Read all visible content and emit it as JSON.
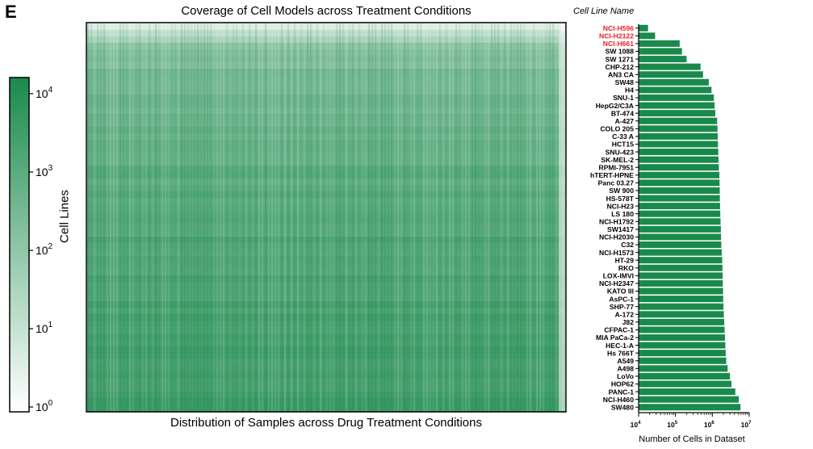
{
  "panel_letter": "E",
  "heatmap": {
    "title": "Coverage of Cell Models across Treatment Conditions",
    "xlabel": "Distribution of Samples across Drug Treatment Conditions",
    "ylabel": "Cell Lines",
    "colorbar_ticks": [
      {
        "base": "10",
        "exp": "4"
      },
      {
        "base": "10",
        "exp": "3"
      },
      {
        "base": "10",
        "exp": "2"
      },
      {
        "base": "10",
        "exp": "1"
      },
      {
        "base": "10",
        "exp": "0"
      }
    ],
    "color_low": "#ffffff",
    "color_high": "#1a8a4c"
  },
  "chart_data": {
    "type": "bar",
    "orientation": "horizontal",
    "title": "Cell Line Name",
    "xlabel": "Number of Cells in Dataset",
    "xscale": "log",
    "xlim": [
      10000,
      10000000
    ],
    "xticks": [
      {
        "base": "10",
        "exp": "4"
      },
      {
        "base": "10",
        "exp": "5"
      },
      {
        "base": "10",
        "exp": "6"
      },
      {
        "base": "10",
        "exp": "7"
      }
    ],
    "bar_color": "#1a8a4c",
    "highlight_color": "#e8202a",
    "categories": [
      "NCI-H596",
      "NCI-H2122",
      "NCI-H661",
      "SW 1088",
      "SW 1271",
      "CHP-212",
      "AN3 CA",
      "SW48",
      "H4",
      "SNU-1",
      "HepG2/C3A",
      "BT-474",
      "A-427",
      "COLO 205",
      "C-33 A",
      "HCT15",
      "SNU-423",
      "SK-MEL-2",
      "RPMI-7951",
      "hTERT-HPNE",
      "Panc 03.27",
      "SW 900",
      "HS-578T",
      "NCI-H23",
      "LS 180",
      "NCI-H1792",
      "SW1417",
      "NCI-H2030",
      "C32",
      "NCI-H1573",
      "HT-29",
      "RKO",
      "LOX-IMVI",
      "NCI-H2347",
      "KATO III",
      "AsPC-1",
      "SHP-77",
      "A-172",
      "J82",
      "CFPAC-1",
      "MIA PaCa-2",
      "HEC-1-A",
      "Hs 766T",
      "A549",
      "A498",
      "LoVo",
      "HOP62",
      "PANC-1",
      "NCI-H460",
      "SW480"
    ],
    "highlighted": [
      "NCI-H596",
      "NCI-H2122",
      "NCI-H661"
    ],
    "values": [
      18000,
      28000,
      130000,
      150000,
      200000,
      480000,
      560000,
      800000,
      950000,
      1100000,
      1150000,
      1200000,
      1350000,
      1380000,
      1400000,
      1420000,
      1450000,
      1470000,
      1500000,
      1550000,
      1570000,
      1590000,
      1600000,
      1620000,
      1640000,
      1670000,
      1700000,
      1720000,
      1750000,
      1800000,
      1850000,
      1880000,
      1900000,
      1920000,
      1950000,
      1970000,
      2000000,
      2050000,
      2100000,
      2150000,
      2200000,
      2250000,
      2300000,
      2380000,
      2600000,
      3000000,
      3300000,
      4200000,
      5200000,
      5800000
    ]
  }
}
